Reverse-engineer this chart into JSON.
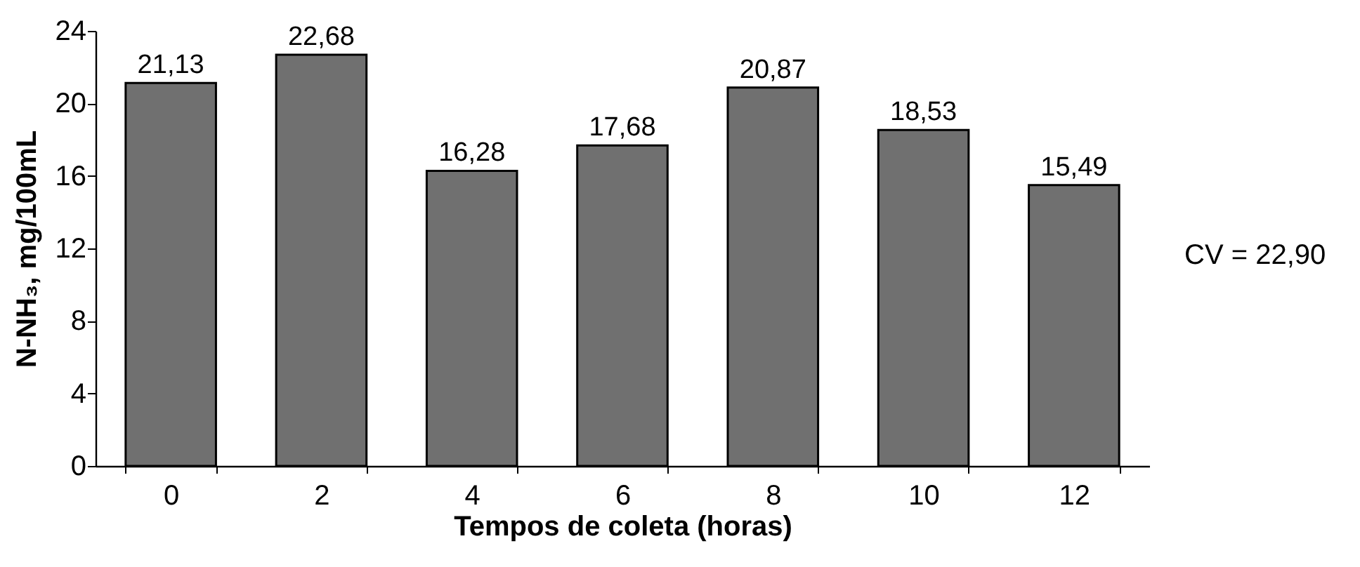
{
  "chart_data": {
    "type": "bar",
    "xlabel": "Tempos de coleta (horas)",
    "ylabel": "N-NH₃, mg/100mL",
    "categories": [
      "0",
      "2",
      "4",
      "6",
      "8",
      "10",
      "12"
    ],
    "values": [
      21.13,
      22.68,
      16.28,
      17.68,
      20.87,
      18.53,
      15.49
    ],
    "value_labels": [
      "21,13",
      "22,68",
      "16,28",
      "17,68",
      "20,87",
      "18,53",
      "15,49"
    ],
    "color": "#707070",
    "ylim": [
      0,
      24
    ],
    "yticks": [
      0,
      4,
      8,
      12,
      16,
      20,
      24
    ],
    "grid": false,
    "annotations": [
      "CV = 22,90"
    ]
  }
}
